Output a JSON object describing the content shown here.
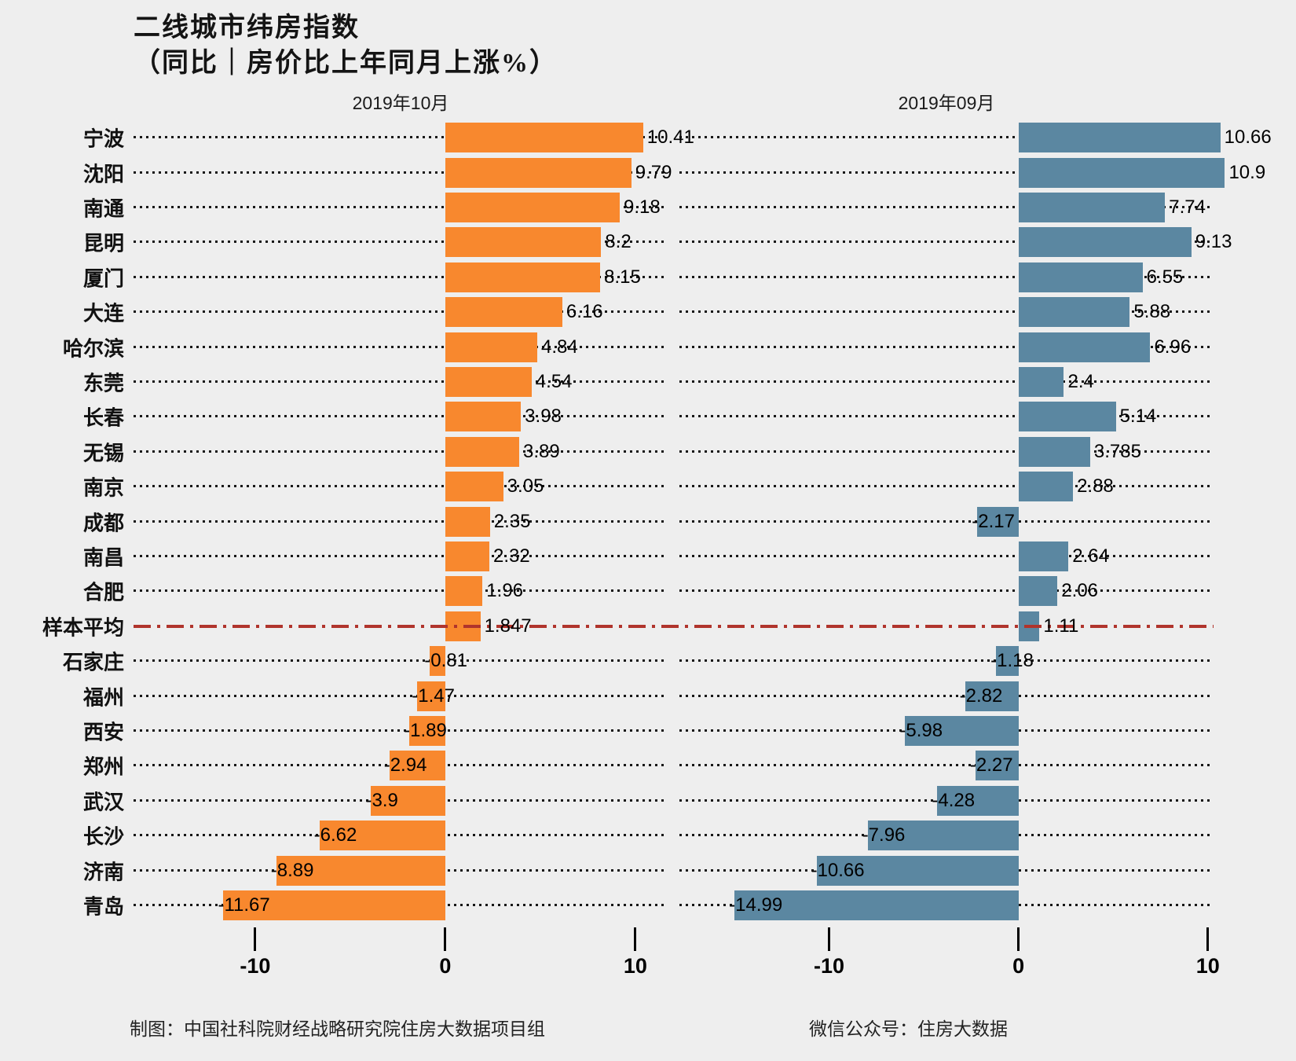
{
  "title": {
    "line1": "二线城市纬房指数",
    "line2": "（同比｜房价比上年同月上涨%）"
  },
  "panels": [
    {
      "id": "october",
      "header": "2019年10月"
    },
    {
      "id": "september",
      "header": "2019年09月"
    }
  ],
  "footer": {
    "left": "制图：中国社科院财经战略研究院住房大数据项目组",
    "right": "微信公众号：住房大数据"
  },
  "colors": {
    "background": "#eeeeee",
    "bar_october": "#f8882e",
    "bar_september": "#5b87a1",
    "average_line": "#b0342c",
    "leader_dots": "#161616",
    "text": "#111111"
  },
  "chart_data": {
    "type": "bar",
    "orientation": "horizontal",
    "title": "二线城市纬房指数（同比｜房价比上年同月上涨%）",
    "xlabel": "",
    "ylabel": "",
    "legend": "none",
    "grid": "dotted-leader-lines",
    "x_ticks": [
      -10,
      0,
      10
    ],
    "average_row": "样本平均",
    "categories": [
      "宁波",
      "沈阳",
      "南通",
      "昆明",
      "厦门",
      "大连",
      "哈尔滨",
      "东莞",
      "长春",
      "无锡",
      "南京",
      "成都",
      "南昌",
      "合肥",
      "样本平均",
      "石家庄",
      "福州",
      "西安",
      "郑州",
      "武汉",
      "长沙",
      "济南",
      "青岛"
    ],
    "series": [
      {
        "name": "2019年10月",
        "color": "#f8882e",
        "xlim": [
          -16.4,
          11.7
        ],
        "values": [
          10.41,
          9.79,
          9.18,
          8.2,
          8.15,
          6.16,
          4.84,
          4.54,
          3.98,
          3.89,
          3.05,
          2.35,
          2.32,
          1.96,
          1.847,
          -0.81,
          -1.47,
          -1.89,
          -2.94,
          -3.9,
          -6.62,
          -8.89,
          -11.67
        ]
      },
      {
        "name": "2019年09月",
        "color": "#5b87a1",
        "xlim": [
          -17.9,
          10.3
        ],
        "values": [
          10.66,
          10.9,
          7.74,
          9.13,
          6.55,
          5.88,
          6.96,
          2.4,
          5.14,
          3.785,
          2.88,
          -2.17,
          2.64,
          2.06,
          1.11,
          -1.18,
          -2.82,
          -5.98,
          -2.27,
          -4.28,
          -7.96,
          -10.66,
          -14.99
        ]
      }
    ]
  }
}
